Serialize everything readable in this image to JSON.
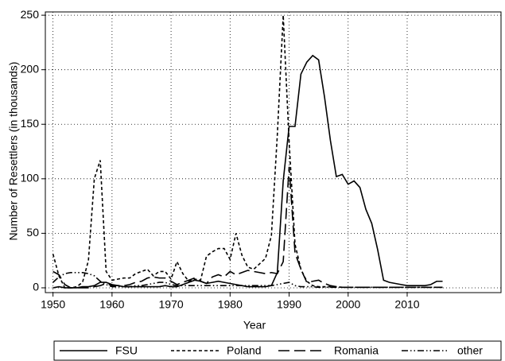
{
  "chart_data": {
    "type": "line",
    "x_label": "Year",
    "y_label": "Number of Resettlers (in thousands)",
    "x": [
      1950,
      1951,
      1952,
      1953,
      1954,
      1955,
      1956,
      1957,
      1958,
      1959,
      1960,
      1961,
      1962,
      1963,
      1964,
      1965,
      1966,
      1967,
      1968,
      1969,
      1970,
      1971,
      1972,
      1973,
      1974,
      1975,
      1976,
      1977,
      1978,
      1979,
      1980,
      1981,
      1982,
      1983,
      1984,
      1985,
      1986,
      1987,
      1988,
      1989,
      1990,
      1991,
      1992,
      1993,
      1994,
      1995,
      1996,
      1997,
      1998,
      1999,
      2000,
      2001,
      2002,
      2003,
      2004,
      2005,
      2006,
      2007,
      2008,
      2009,
      2010,
      2011,
      2012,
      2013,
      2014,
      2015,
      2016
    ],
    "series": [
      {
        "name": "FSU",
        "color": "#000000",
        "style": "solid",
        "values": [
          0,
          1,
          0,
          0,
          0,
          1,
          1,
          2,
          5,
          5,
          3,
          2,
          1,
          1,
          1,
          1,
          1,
          1,
          1,
          2,
          1,
          1,
          3,
          5,
          7,
          6,
          4,
          5,
          6,
          5,
          4,
          3,
          2,
          1,
          1,
          1,
          1,
          2,
          14,
          98,
          148,
          148,
          196,
          207,
          213,
          209,
          175,
          135,
          102,
          104,
          95,
          98,
          92,
          72,
          59,
          35,
          7,
          5,
          4,
          3,
          2,
          2,
          2,
          2,
          3,
          6,
          6
        ]
      },
      {
        "name": "Poland",
        "color": "#000000",
        "style": "dash",
        "values": [
          31,
          11,
          0,
          0,
          1,
          5,
          25,
          100,
          117,
          15,
          7,
          8,
          9,
          9,
          13,
          15,
          17,
          11,
          15,
          15,
          8,
          24,
          13,
          6,
          8,
          7,
          29,
          33,
          36,
          36,
          26,
          50,
          30,
          19,
          17,
          22,
          27,
          48,
          140,
          250,
          134,
          40,
          17,
          6,
          2,
          1,
          1,
          1,
          1,
          0.5,
          0.5,
          0.5,
          0.5,
          0.5,
          0.5,
          0.5,
          0.5,
          0.5,
          0.5,
          0.5,
          0.5,
          0.5,
          0.5,
          0.5,
          0.5,
          0.5,
          0.5
        ]
      },
      {
        "name": "Romania",
        "color": "#000000",
        "style": "longdash",
        "values": [
          15,
          12,
          3,
          0,
          0,
          0,
          0,
          1,
          2,
          4,
          2,
          2,
          2,
          3,
          5,
          6,
          9,
          10,
          9,
          9,
          6,
          3,
          5,
          7,
          9,
          6,
          4,
          10,
          12,
          10,
          15,
          12,
          14,
          16,
          15,
          14,
          13,
          14,
          13,
          24,
          111,
          32,
          17,
          5,
          6,
          7,
          4,
          2,
          1,
          0.5,
          0.5,
          0.5,
          0.5,
          0.5,
          0.5,
          0.5,
          0.5,
          0.5,
          0.5,
          0.5,
          0.5,
          0.5,
          0.5,
          0.5,
          0.5,
          0.5,
          0.5
        ]
      },
      {
        "name": "other",
        "color": "#000000",
        "style": "dashdotdot",
        "values": [
          5,
          10,
          13,
          14,
          14,
          14,
          13,
          11,
          6,
          3,
          1,
          1,
          1,
          1,
          2,
          2,
          3,
          4,
          5,
          5,
          3,
          2,
          2,
          2,
          2,
          2,
          2,
          2,
          2,
          2,
          2,
          2,
          2,
          2,
          2,
          2,
          2,
          2,
          3,
          4,
          5,
          2,
          1,
          1,
          1,
          0.5,
          0.5,
          0.5,
          0.5,
          0.5,
          0.5,
          0.5,
          0.5,
          0.5,
          0.5,
          0.5,
          0.5,
          0.5,
          0.5,
          0.5,
          0.5,
          0.5,
          0.5,
          0.5,
          0.5,
          0.5,
          0.5
        ]
      }
    ],
    "xlim": [
      1948.7,
      2025.9
    ],
    "xticks": [
      1950,
      1960,
      1970,
      1980,
      1990,
      2000,
      2010
    ],
    "ylim": [
      -4.4,
      253
    ],
    "yticks": [
      0,
      50,
      100,
      150,
      200,
      250
    ],
    "grid": true,
    "legend": "bottom"
  }
}
